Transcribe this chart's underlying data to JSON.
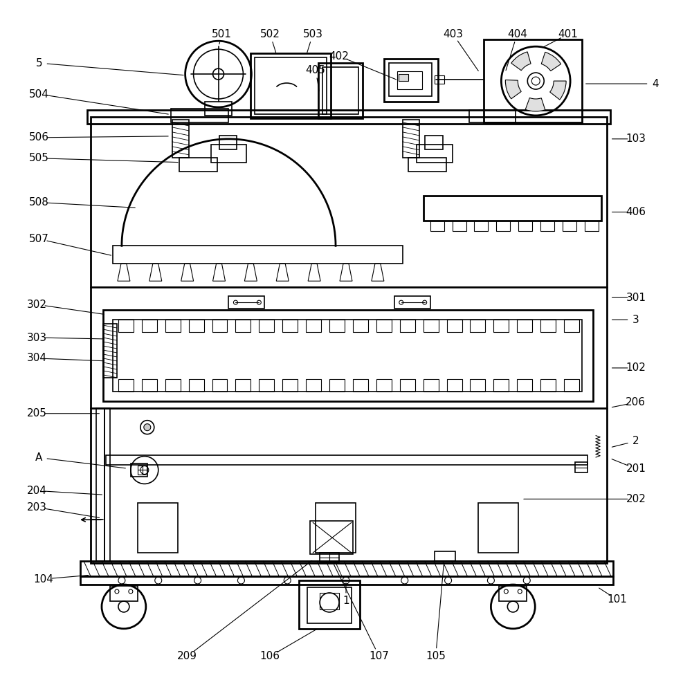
{
  "bg_color": "#ffffff",
  "lc": "#000000",
  "lw": 1.2,
  "lw2": 2.0,
  "fig_w": 10.0,
  "fig_h": 9.96,
  "dpi": 100,
  "labels": [
    [
      "1",
      500,
      870,
      500,
      838
    ],
    [
      "101",
      893,
      868,
      862,
      848
    ],
    [
      "102",
      920,
      532,
      880,
      532
    ],
    [
      "103",
      920,
      200,
      880,
      200
    ],
    [
      "104",
      62,
      838,
      132,
      832
    ],
    [
      "105",
      630,
      950,
      642,
      812
    ],
    [
      "106",
      390,
      950,
      462,
      908
    ],
    [
      "107",
      548,
      950,
      480,
      812
    ],
    [
      "2",
      920,
      638,
      880,
      648
    ],
    [
      "201",
      920,
      678,
      880,
      662
    ],
    [
      "202",
      920,
      722,
      752,
      722
    ],
    [
      "203",
      52,
      734,
      148,
      750
    ],
    [
      "204",
      52,
      710,
      152,
      716
    ],
    [
      "205",
      52,
      598,
      148,
      598
    ],
    [
      "206",
      920,
      582,
      880,
      590
    ],
    [
      "209",
      270,
      950,
      455,
      808
    ],
    [
      "3",
      920,
      462,
      880,
      462
    ],
    [
      "301",
      920,
      430,
      880,
      430
    ],
    [
      "302",
      52,
      440,
      155,
      455
    ],
    [
      "303",
      52,
      488,
      155,
      490
    ],
    [
      "304",
      52,
      518,
      155,
      522
    ],
    [
      "4",
      948,
      120,
      842,
      120
    ],
    [
      "401",
      822,
      48,
      780,
      70
    ],
    [
      "402",
      490,
      80,
      578,
      116
    ],
    [
      "403",
      655,
      48,
      695,
      106
    ],
    [
      "404",
      748,
      48,
      730,
      106
    ],
    [
      "405",
      456,
      100,
      462,
      136
    ],
    [
      "406",
      920,
      306,
      880,
      306
    ],
    [
      "5",
      55,
      90,
      270,
      108
    ],
    [
      "501",
      320,
      48,
      315,
      68
    ],
    [
      "502",
      390,
      48,
      400,
      80
    ],
    [
      "503",
      452,
      48,
      442,
      80
    ],
    [
      "504",
      55,
      135,
      248,
      165
    ],
    [
      "505",
      55,
      228,
      262,
      234
    ],
    [
      "506",
      55,
      198,
      248,
      196
    ],
    [
      "507",
      55,
      345,
      165,
      370
    ],
    [
      "508",
      55,
      292,
      200,
      300
    ],
    [
      "A",
      55,
      662,
      186,
      678
    ]
  ]
}
